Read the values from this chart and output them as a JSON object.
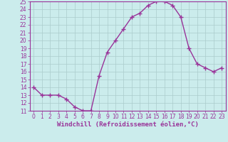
{
  "x": [
    0,
    1,
    2,
    3,
    4,
    5,
    6,
    7,
    8,
    9,
    10,
    11,
    12,
    13,
    14,
    15,
    16,
    17,
    18,
    19,
    20,
    21,
    22,
    23
  ],
  "y": [
    14,
    13,
    13,
    13,
    12.5,
    11.5,
    11,
    11,
    15.5,
    18.5,
    20,
    21.5,
    23,
    23.5,
    24.5,
    25,
    25,
    24.5,
    23,
    19,
    17,
    16.5,
    16,
    16.5
  ],
  "line_color": "#993399",
  "marker": "+",
  "marker_size": 4,
  "bg_color": "#cbecec",
  "grid_color": "#aacccc",
  "xlabel": "Windchill (Refroidissement éolien,°C)",
  "ylim": [
    11,
    25
  ],
  "xlim": [
    -0.5,
    23.5
  ],
  "yticks": [
    11,
    12,
    13,
    14,
    15,
    16,
    17,
    18,
    19,
    20,
    21,
    22,
    23,
    24,
    25
  ],
  "xticks": [
    0,
    1,
    2,
    3,
    4,
    5,
    6,
    7,
    8,
    9,
    10,
    11,
    12,
    13,
    14,
    15,
    16,
    17,
    18,
    19,
    20,
    21,
    22,
    23
  ],
  "xlabel_fontsize": 6.5,
  "tick_fontsize": 5.5,
  "line_width": 1.0
}
